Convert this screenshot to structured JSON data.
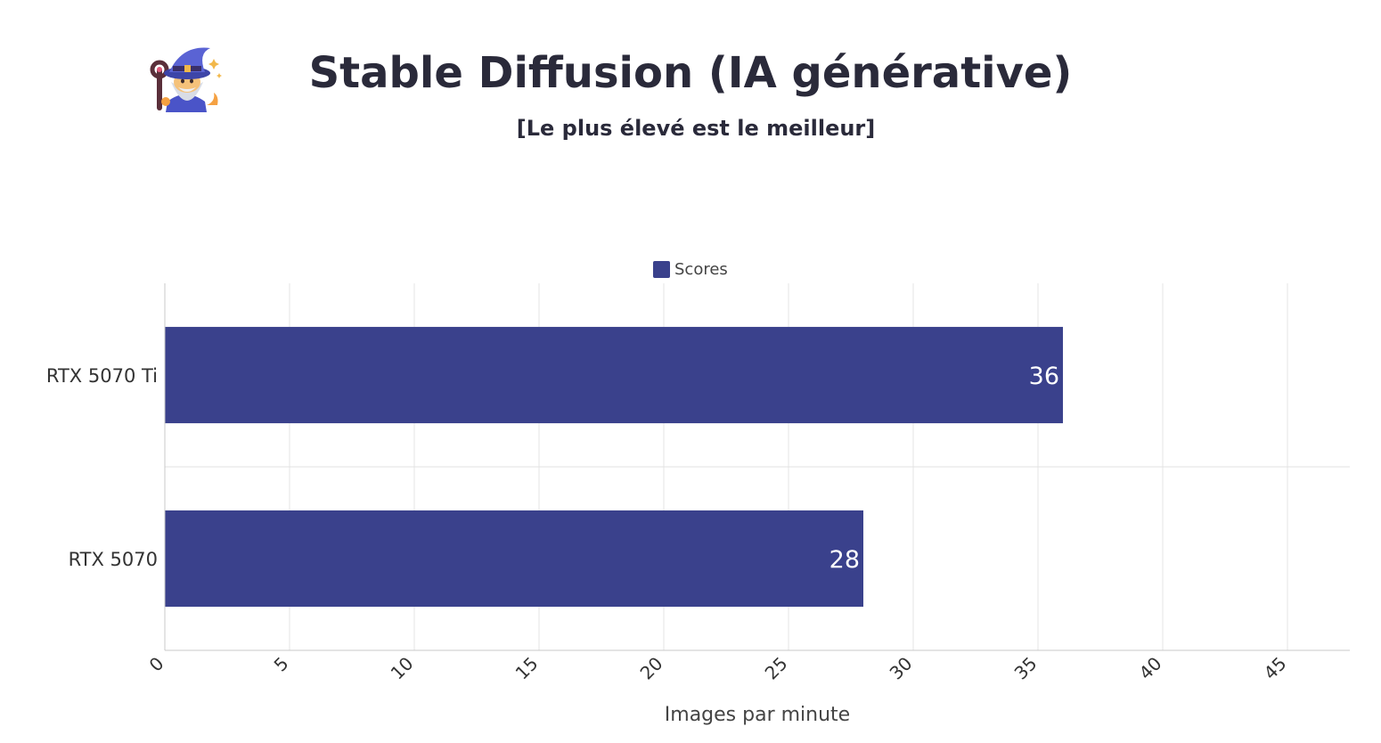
{
  "header": {
    "title": "Stable Diffusion (IA générative)",
    "subtitle": "[Le plus élevé est le meilleur]",
    "logo_icon": "wizard-icon"
  },
  "legend": {
    "label": "Scores",
    "color": "#3a418c"
  },
  "chart_data": {
    "type": "bar",
    "orientation": "horizontal",
    "categories": [
      "RTX 5070 Ti",
      "RTX 5070"
    ],
    "series": [
      {
        "name": "Scores",
        "values": [
          36,
          28
        ],
        "color": "#3a418c"
      }
    ],
    "xlabel": "Images par minute",
    "ylabel": "",
    "xlim": [
      0,
      47.5
    ],
    "xticks": [
      0,
      5,
      10,
      15,
      20,
      25,
      30,
      35,
      40,
      45
    ],
    "grid": true,
    "legend_position": "top-center"
  }
}
